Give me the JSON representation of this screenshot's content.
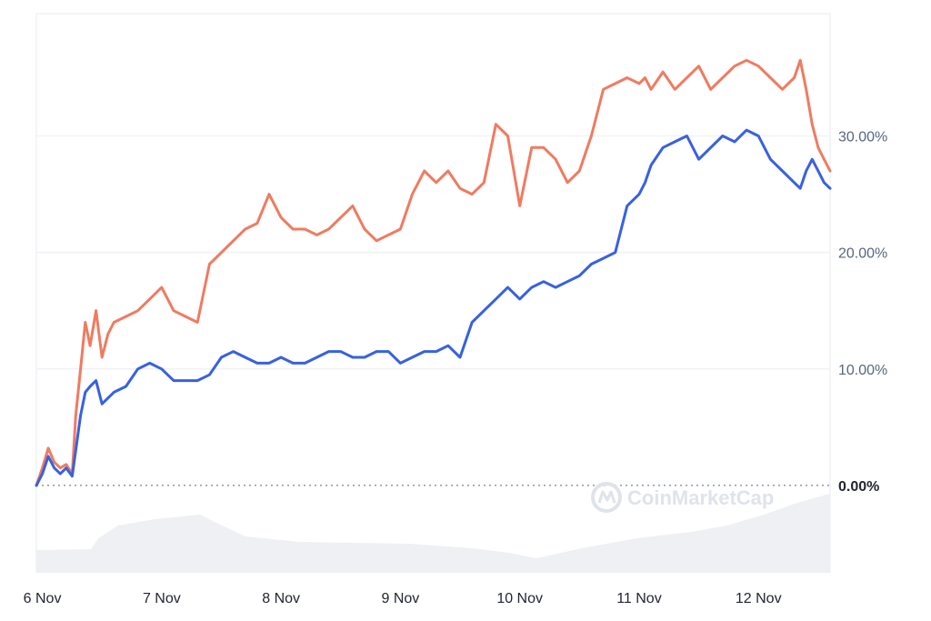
{
  "chart_data": {
    "type": "line",
    "x_tick_labels": [
      "6 Nov",
      "7 Nov",
      "8 Nov",
      "9 Nov",
      "10 Nov",
      "11 Nov",
      "12 Nov"
    ],
    "y_tick_labels": [
      "0.00%",
      "10.00%",
      "20.00%",
      "30.00%"
    ],
    "y_ticks": [
      0,
      10,
      20,
      30
    ],
    "xlim": [
      5.95,
      12.6
    ],
    "ylim": [
      -7.5,
      40.5
    ],
    "grid": true,
    "watermark": "CoinMarketCap",
    "series": [
      {
        "color": "#ef7b61",
        "x": [
          5.95,
          6.0,
          6.05,
          6.1,
          6.15,
          6.2,
          6.25,
          6.28,
          6.32,
          6.36,
          6.4,
          6.45,
          6.5,
          6.55,
          6.6,
          6.7,
          6.8,
          6.9,
          7.0,
          7.1,
          7.2,
          7.3,
          7.4,
          7.5,
          7.6,
          7.7,
          7.8,
          7.9,
          8.0,
          8.1,
          8.2,
          8.3,
          8.4,
          8.5,
          8.6,
          8.7,
          8.8,
          8.9,
          9.0,
          9.1,
          9.2,
          9.3,
          9.4,
          9.5,
          9.6,
          9.7,
          9.8,
          9.9,
          10.0,
          10.1,
          10.2,
          10.3,
          10.4,
          10.5,
          10.6,
          10.7,
          10.8,
          10.9,
          11.0,
          11.05,
          11.1,
          11.2,
          11.3,
          11.4,
          11.5,
          11.6,
          11.7,
          11.8,
          11.9,
          12.0,
          12.1,
          12.2,
          12.3,
          12.35,
          12.4,
          12.45,
          12.5,
          12.55,
          12.6
        ],
        "y": [
          0,
          1.5,
          3.2,
          2,
          1.5,
          1.8,
          1,
          6,
          10,
          14,
          12,
          15,
          11,
          13,
          14,
          14.5,
          15,
          16,
          17,
          15,
          14.5,
          14,
          19,
          20,
          21,
          22,
          22.5,
          25,
          23,
          22,
          22,
          21.5,
          22,
          23,
          24,
          22,
          21,
          21.5,
          22,
          25,
          27,
          26,
          27,
          25.5,
          25,
          26,
          31,
          30,
          24,
          29,
          29,
          28,
          26,
          27,
          30,
          34,
          34.5,
          35,
          34.5,
          35,
          34,
          35.5,
          34,
          35,
          36,
          34,
          35,
          36,
          36.5,
          36,
          35,
          34,
          35,
          36.5,
          34,
          31,
          29,
          28,
          27
        ]
      },
      {
        "color": "#3861e0",
        "x": [
          5.95,
          6.0,
          6.05,
          6.1,
          6.15,
          6.2,
          6.25,
          6.28,
          6.32,
          6.36,
          6.4,
          6.45,
          6.5,
          6.6,
          6.7,
          6.8,
          6.9,
          7.0,
          7.1,
          7.2,
          7.3,
          7.4,
          7.5,
          7.6,
          7.7,
          7.8,
          7.9,
          8.0,
          8.1,
          8.2,
          8.3,
          8.4,
          8.5,
          8.6,
          8.7,
          8.8,
          8.9,
          9.0,
          9.1,
          9.2,
          9.3,
          9.4,
          9.5,
          9.6,
          9.7,
          9.8,
          9.9,
          10.0,
          10.1,
          10.2,
          10.3,
          10.4,
          10.5,
          10.6,
          10.7,
          10.8,
          10.9,
          11.0,
          11.05,
          11.1,
          11.2,
          11.3,
          11.4,
          11.5,
          11.6,
          11.7,
          11.8,
          11.9,
          12.0,
          12.1,
          12.2,
          12.3,
          12.35,
          12.4,
          12.45,
          12.5,
          12.55,
          12.6
        ],
        "y": [
          0,
          1,
          2.5,
          1.5,
          1,
          1.5,
          0.8,
          3,
          6,
          8,
          8.5,
          9,
          7,
          8,
          8.5,
          10,
          10.5,
          10,
          9,
          9,
          9,
          9.5,
          11,
          11.5,
          11,
          10.5,
          10.5,
          11,
          10.5,
          10.5,
          11,
          11.5,
          11.5,
          11,
          11,
          11.5,
          11.5,
          10.5,
          11,
          11.5,
          11.5,
          12,
          11,
          14,
          15,
          16,
          17,
          16,
          17,
          17.5,
          17,
          17.5,
          18,
          19,
          19.5,
          20,
          24,
          25,
          26,
          27.5,
          29,
          29.5,
          30,
          28,
          29,
          30,
          29.5,
          30.5,
          30,
          28,
          27,
          26,
          25.5,
          27,
          28,
          27,
          26,
          25.5
        ]
      }
    ]
  }
}
